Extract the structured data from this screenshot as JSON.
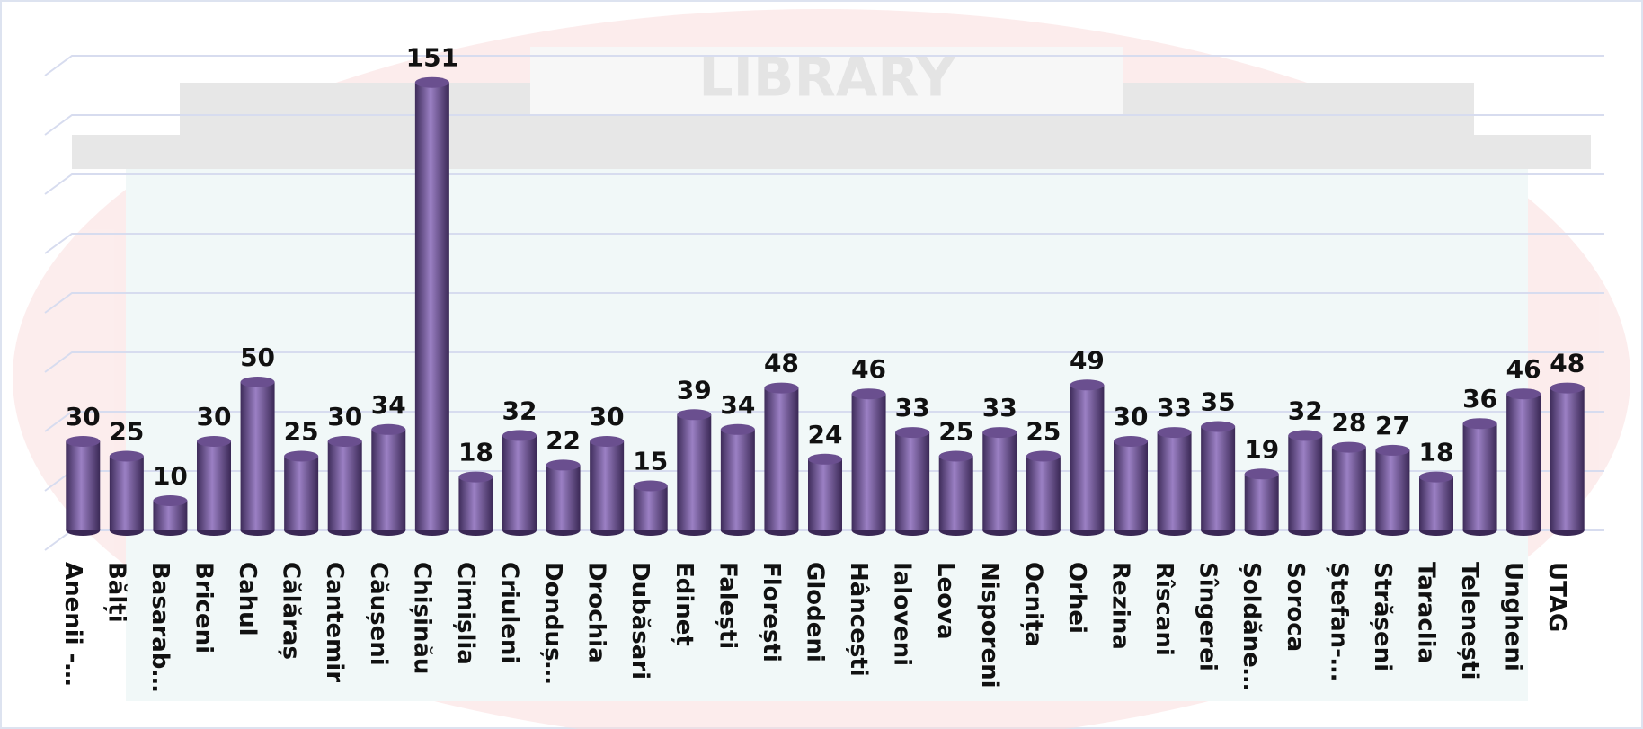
{
  "chart_data": {
    "type": "bar",
    "watermark": "LIBRARY",
    "categories": [
      "Anenii -…",
      "Bălți",
      "Basarab…",
      "Briceni",
      "Cahul",
      "Călăraș",
      "Cantemir",
      "Căușeni",
      "Chișinău",
      "Cimișlia",
      "Criuleni",
      "Donduș…",
      "Drochia",
      "Dubăsari",
      "Edineț",
      "Falești",
      "Florești",
      "Glodeni",
      "Hâncești",
      "Ialoveni",
      "Leova",
      "Nisporeni",
      "Ocnița",
      "Orhei",
      "Rezina",
      "Rîscani",
      "Sîngerei",
      "Șoldăne…",
      "Soroca",
      "Ștefan-…",
      "Strășeni",
      "Taraclia",
      "Telenești",
      "Ungheni",
      "UTAG"
    ],
    "values": [
      30,
      25,
      10,
      30,
      50,
      25,
      30,
      34,
      151,
      18,
      32,
      22,
      30,
      15,
      39,
      34,
      48,
      24,
      46,
      33,
      25,
      33,
      25,
      49,
      30,
      33,
      35,
      19,
      32,
      28,
      27,
      18,
      36,
      46,
      48
    ],
    "color": "#6a4f8f",
    "ylim": [
      0,
      160
    ],
    "yticks": [
      0,
      20,
      40,
      60,
      80,
      100,
      120,
      140,
      160
    ],
    "grid": true
  }
}
